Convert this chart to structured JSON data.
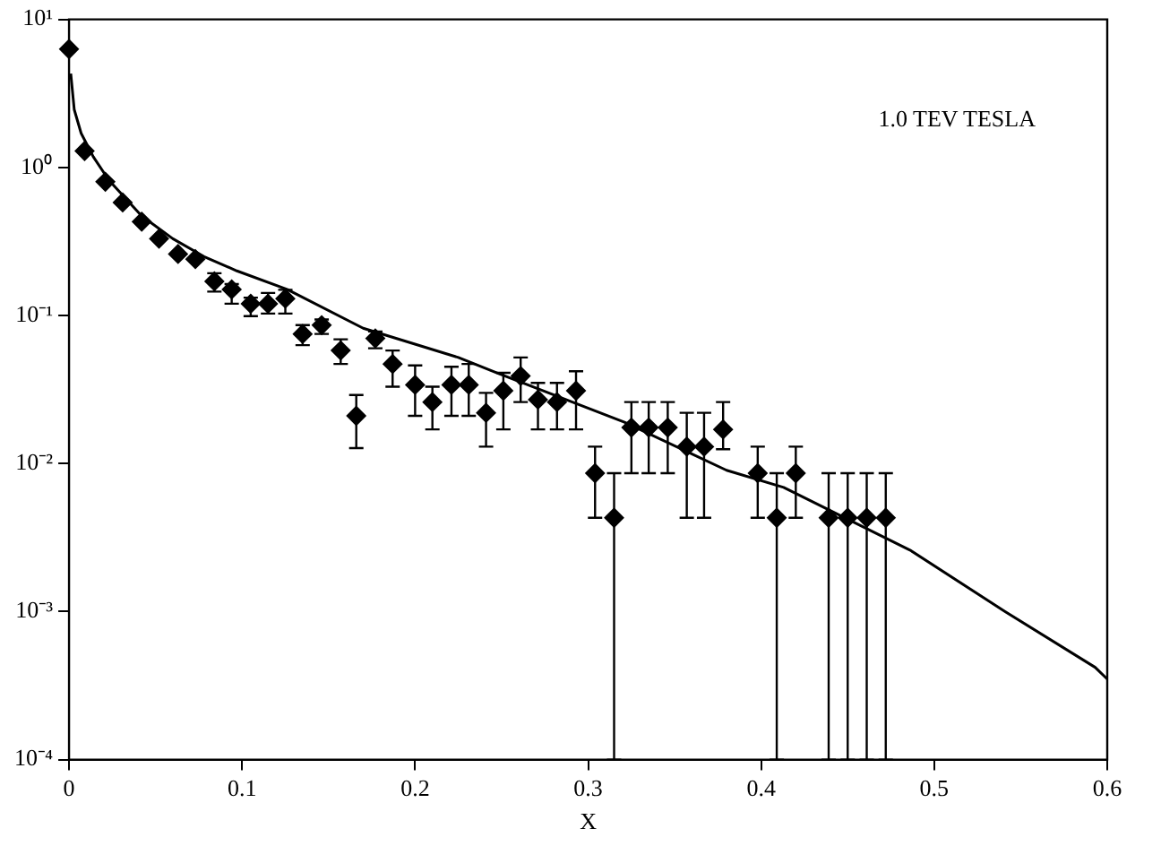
{
  "chart_data": {
    "type": "scatter",
    "xlabel": "X",
    "annotations": [
      "1.0 TEV TESLA"
    ],
    "log": "y",
    "grid": false,
    "legend": false,
    "marker": "diamond",
    "xlim": [
      0,
      0.6
    ],
    "xticks": [
      0,
      0.1,
      0.2,
      0.3,
      0.4,
      0.5,
      0.6
    ],
    "ylim": [
      0.0001,
      10
    ],
    "yticks": [
      {
        "value": 0.0001,
        "label": "10⁻⁴"
      },
      {
        "value": 0.001,
        "label": "10⁻³"
      },
      {
        "value": 0.01,
        "label": "10⁻²"
      },
      {
        "value": 0.1,
        "label": "10⁻¹"
      },
      {
        "value": 1,
        "label": "10⁰"
      },
      {
        "value": 10,
        "label": "10¹"
      }
    ],
    "series": [
      {
        "color": "#000000",
        "x": [
          0.0,
          0.009,
          0.021,
          0.031,
          0.042,
          0.052,
          0.063,
          0.073,
          0.084,
          0.094,
          0.105,
          0.115,
          0.125,
          0.135,
          0.146,
          0.157,
          0.166,
          0.177,
          0.187,
          0.2,
          0.21,
          0.221,
          0.231,
          0.241,
          0.251,
          0.261,
          0.271,
          0.282,
          0.293,
          0.304,
          0.315,
          0.325,
          0.335,
          0.346,
          0.357,
          0.367,
          0.378,
          0.398,
          0.409,
          0.42,
          0.439,
          0.45,
          0.461,
          0.472
        ],
        "values": [
          6.3,
          1.29,
          0.8,
          0.58,
          0.43,
          0.33,
          0.26,
          0.24,
          0.17,
          0.15,
          0.12,
          0.12,
          0.13,
          0.075,
          0.086,
          0.058,
          0.021,
          0.07,
          0.047,
          0.034,
          0.026,
          0.034,
          0.034,
          0.022,
          0.031,
          0.039,
          0.027,
          0.026,
          0.031,
          0.0086,
          0.0043,
          0.0175,
          0.0175,
          0.0175,
          0.013,
          0.013,
          0.017,
          0.0086,
          0.0043,
          0.0086,
          0.0043,
          0.0043,
          0.0043,
          0.0043
        ],
        "errors": [
          null,
          null,
          null,
          null,
          null,
          null,
          null,
          null,
          [
            0.145,
            0.193
          ],
          [
            0.12,
            0.163
          ],
          [
            0.099,
            0.132
          ],
          [
            0.103,
            0.142
          ],
          [
            0.103,
            0.149
          ],
          [
            0.063,
            0.086
          ],
          [
            0.075,
            0.094
          ],
          [
            0.047,
            0.069
          ],
          [
            0.0127,
            0.029
          ],
          [
            0.06,
            0.078
          ],
          [
            0.033,
            0.058
          ],
          [
            0.021,
            0.046
          ],
          [
            0.017,
            0.033
          ],
          [
            0.021,
            0.045
          ],
          [
            0.021,
            0.047
          ],
          [
            0.013,
            0.03
          ],
          [
            0.017,
            0.041
          ],
          [
            0.026,
            0.052
          ],
          [
            0.017,
            0.035
          ],
          [
            0.017,
            0.035
          ],
          [
            0.017,
            0.042
          ],
          [
            0.0043,
            0.013
          ],
          [
            0.0001,
            0.0086
          ],
          [
            0.0086,
            0.026
          ],
          [
            0.0086,
            0.026
          ],
          [
            0.0086,
            0.026
          ],
          [
            0.0043,
            0.022
          ],
          [
            0.0043,
            0.022
          ],
          [
            0.0125,
            0.026
          ],
          [
            0.0043,
            0.013
          ],
          [
            0.0001,
            0.0086
          ],
          [
            0.0043,
            0.013
          ],
          [
            0.0001,
            0.0086
          ],
          [
            0.0001,
            0.0086
          ],
          [
            0.0001,
            0.0086
          ],
          [
            0.0001,
            0.0086
          ]
        ]
      },
      {
        "type": "line",
        "color": "#000000",
        "marker": "none",
        "line_style": "solid",
        "x": [
          0.001,
          0.003,
          0.007,
          0.014,
          0.023,
          0.042,
          0.06,
          0.078,
          0.097,
          0.126,
          0.17,
          0.225,
          0.247,
          0.321,
          0.38,
          0.413,
          0.486,
          0.541,
          0.593,
          0.6
        ],
        "values": [
          4.3,
          2.46,
          1.7,
          1.18,
          0.82,
          0.47,
          0.33,
          0.25,
          0.2,
          0.15,
          0.082,
          0.052,
          0.041,
          0.019,
          0.009,
          0.0069,
          0.0026,
          0.001,
          0.00042,
          0.00035
        ]
      }
    ]
  }
}
